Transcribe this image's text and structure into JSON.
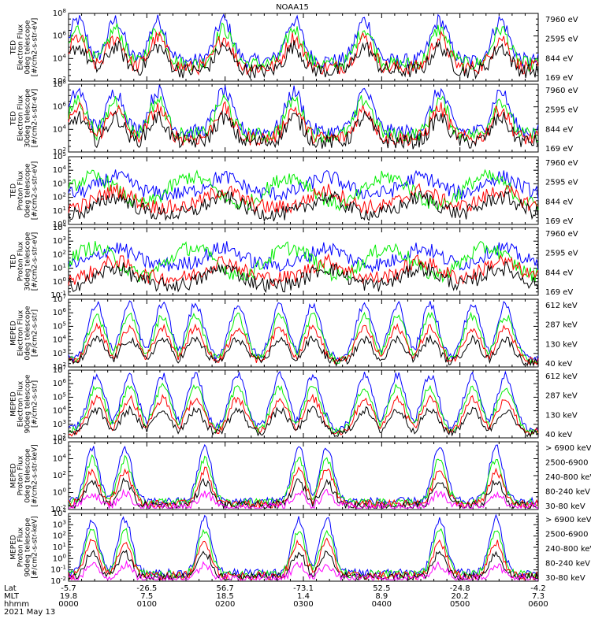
{
  "title": "NOAA15",
  "colors": {
    "blue": "#0000ff",
    "red": "#ff0000",
    "green": "#00ee00",
    "black": "#000000",
    "magenta": "#ff00ff"
  },
  "chart_data": [
    {
      "type": "line",
      "ylabel": [
        "TED",
        "Electron Flux",
        "0deg telescope",
        "[#/cm2-s-str-eV]"
      ],
      "log": true,
      "yticks": [
        "10^2",
        "10^4",
        "10^6",
        "10^8"
      ],
      "series": [
        {
          "name": "7960 eV",
          "color": "#000000"
        },
        {
          "name": "2595 eV",
          "color": "#ff0000"
        },
        {
          "name": "844 eV",
          "color": "#00ee00"
        },
        {
          "name": "169 eV",
          "color": "#0000ff"
        }
      ]
    },
    {
      "type": "line",
      "ylabel": [
        "TED",
        "Electron Flux",
        "30deg telescope",
        "[#/cm2-s-str-eV]"
      ],
      "log": true,
      "yticks": [
        "10^2",
        "10^4",
        "10^6",
        "10^8"
      ],
      "series": [
        {
          "name": "7960 eV",
          "color": "#000000"
        },
        {
          "name": "2595 eV",
          "color": "#ff0000"
        },
        {
          "name": "844 eV",
          "color": "#00ee00"
        },
        {
          "name": "169 eV",
          "color": "#0000ff"
        }
      ]
    },
    {
      "type": "line",
      "ylabel": [
        "TED",
        "Proton Flux",
        "0deg telescope",
        "[#/cm2-s-str-eV]"
      ],
      "log": true,
      "yticks": [
        "10^0",
        "10^1",
        "10^2",
        "10^3",
        "10^4",
        "10^5"
      ],
      "series": [
        {
          "name": "7960 eV",
          "color": "#000000"
        },
        {
          "name": "2595 eV",
          "color": "#ff0000"
        },
        {
          "name": "844 eV",
          "color": "#00ee00"
        },
        {
          "name": "169 eV",
          "color": "#0000ff"
        }
      ]
    },
    {
      "type": "line",
      "ylabel": [
        "TED",
        "Proton Flux",
        "30deg telescope",
        "[#/cm2-s-str-eV]"
      ],
      "log": true,
      "yticks": [
        "10^-1",
        "10^0",
        "10^1",
        "10^2",
        "10^3",
        "10^4"
      ],
      "series": [
        {
          "name": "7960 eV",
          "color": "#000000"
        },
        {
          "name": "2595 eV",
          "color": "#ff0000"
        },
        {
          "name": "844 eV",
          "color": "#00ee00"
        },
        {
          "name": "169 eV",
          "color": "#0000ff"
        }
      ]
    },
    {
      "type": "line",
      "ylabel": [
        "MEPED",
        "Electron Flux",
        "0deg telescope",
        "[#/cm2-s-str]"
      ],
      "log": true,
      "yticks": [
        "10^2",
        "10^3",
        "10^4",
        "10^5",
        "10^6",
        "10^7"
      ],
      "series": [
        {
          "name": "612 keV",
          "color": "#000000"
        },
        {
          "name": "287 keV",
          "color": "#ff0000"
        },
        {
          "name": "130 keV",
          "color": "#00ee00"
        },
        {
          "name": "40 keV",
          "color": "#0000ff"
        }
      ]
    },
    {
      "type": "line",
      "ylabel": [
        "MEPED",
        "Electron Flux",
        "90deg telescope",
        "[#/cm2-s-str]"
      ],
      "log": true,
      "yticks": [
        "10^2",
        "10^3",
        "10^4",
        "10^5",
        "10^6",
        "10^7"
      ],
      "series": [
        {
          "name": "612 keV",
          "color": "#000000"
        },
        {
          "name": "287 keV",
          "color": "#ff0000"
        },
        {
          "name": "130 keV",
          "color": "#00ee00"
        },
        {
          "name": "40 keV",
          "color": "#0000ff"
        }
      ]
    },
    {
      "type": "line",
      "ylabel": [
        "MEPED",
        "Proton Flux",
        "0deg telescope",
        "[#/cm2-s-str-keV]"
      ],
      "log": true,
      "yticks": [
        "10^-2",
        "10^0",
        "10^2",
        "10^4",
        "10^6"
      ],
      "series": [
        {
          "name": "> 6900 keV",
          "color": "#ff00ff"
        },
        {
          "name": "2500-6900",
          "color": "#000000"
        },
        {
          "name": "240-800 keV",
          "color": "#ff0000"
        },
        {
          "name": "80-240 keV",
          "color": "#00ee00"
        },
        {
          "name": "30-80 keV",
          "color": "#0000ff"
        }
      ]
    },
    {
      "type": "line",
      "ylabel": [
        "MEPED",
        "Proton Flux",
        "90deg telescope",
        "[#/cm2-s-str-keV]"
      ],
      "log": true,
      "yticks": [
        "10^-2",
        "10^-1",
        "10^0",
        "10^1",
        "10^2",
        "10^3",
        "10^4"
      ],
      "series": [
        {
          "name": "> 6900 keV",
          "color": "#ff00ff"
        },
        {
          "name": "2500-6900",
          "color": "#000000"
        },
        {
          "name": "240-800 keV",
          "color": "#ff0000"
        },
        {
          "name": "80-240 keV",
          "color": "#00ee00"
        },
        {
          "name": "30-80 keV",
          "color": "#0000ff"
        }
      ]
    }
  ],
  "xaxis": {
    "row_labels": [
      "Lat",
      "MLT",
      "hhmm",
      "2021 May 13"
    ],
    "ticks": [
      {
        "lat": "-5.7",
        "mlt": "19.8",
        "hhmm": "0000"
      },
      {
        "lat": "-26.5",
        "mlt": "7.5",
        "hhmm": "0100"
      },
      {
        "lat": "56.7",
        "mlt": "18.5",
        "hhmm": "0200"
      },
      {
        "lat": "-73.1",
        "mlt": "1.4",
        "hhmm": "0300"
      },
      {
        "lat": "52.5",
        "mlt": "8.9",
        "hhmm": "0400"
      },
      {
        "lat": "-24.8",
        "mlt": "20.2",
        "hhmm": "0500"
      },
      {
        "lat": "-4.2",
        "mlt": "7.3",
        "hhmm": "0600"
      }
    ]
  }
}
